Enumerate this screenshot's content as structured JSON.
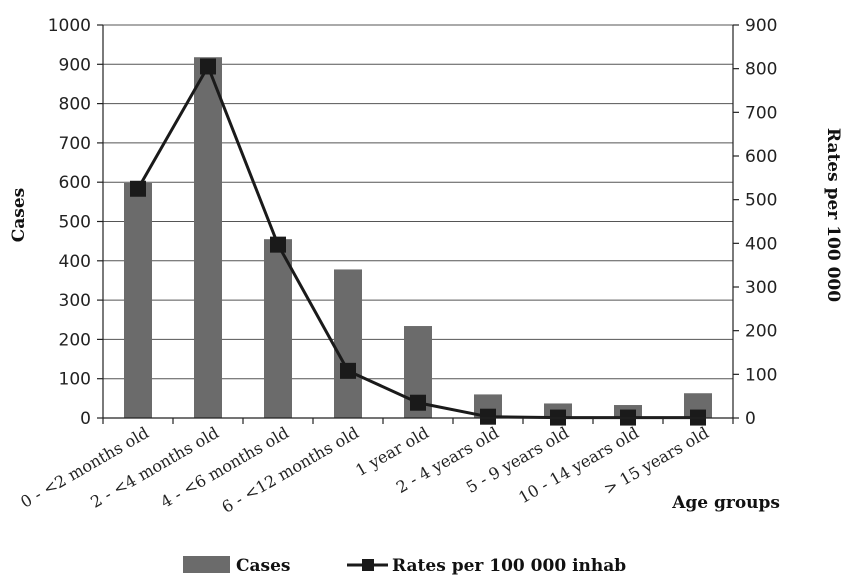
{
  "chart_data": {
    "type": "bar",
    "categories": [
      "0 - <2 months old",
      "2 - <4 months old",
      "4 - <6 months old",
      "6 - <12 months old",
      "1 year old",
      "2 - 4 years old",
      "5 - 9 years old",
      "10 - 14 years old",
      "> 15 years old"
    ],
    "series": [
      {
        "name": "Cases",
        "type": "bar",
        "axis": "left",
        "color": "#6b6b6b",
        "values": [
          598,
          918,
          455,
          378,
          234,
          60,
          37,
          33,
          63
        ]
      },
      {
        "name": "Rates per 100 000 inhab",
        "type": "line",
        "axis": "right",
        "color": "#1a1a1a",
        "values": [
          525,
          805,
          397,
          108,
          35,
          3,
          1,
          1,
          1
        ]
      }
    ],
    "xlabel": "Age groups",
    "ylabel": "Cases",
    "ylabel_right": "Rates per 100 000",
    "ylim": [
      0,
      1000
    ],
    "ylim_right": [
      0,
      900
    ],
    "yticks": [
      "0",
      "100",
      "200",
      "300",
      "400",
      "500",
      "600",
      "700",
      "800",
      "900",
      "1000"
    ],
    "yticks_right": [
      "0",
      "100",
      "200",
      "300",
      "400",
      "500",
      "600",
      "700",
      "800",
      "900"
    ],
    "grid": true,
    "legend": "bottom"
  }
}
